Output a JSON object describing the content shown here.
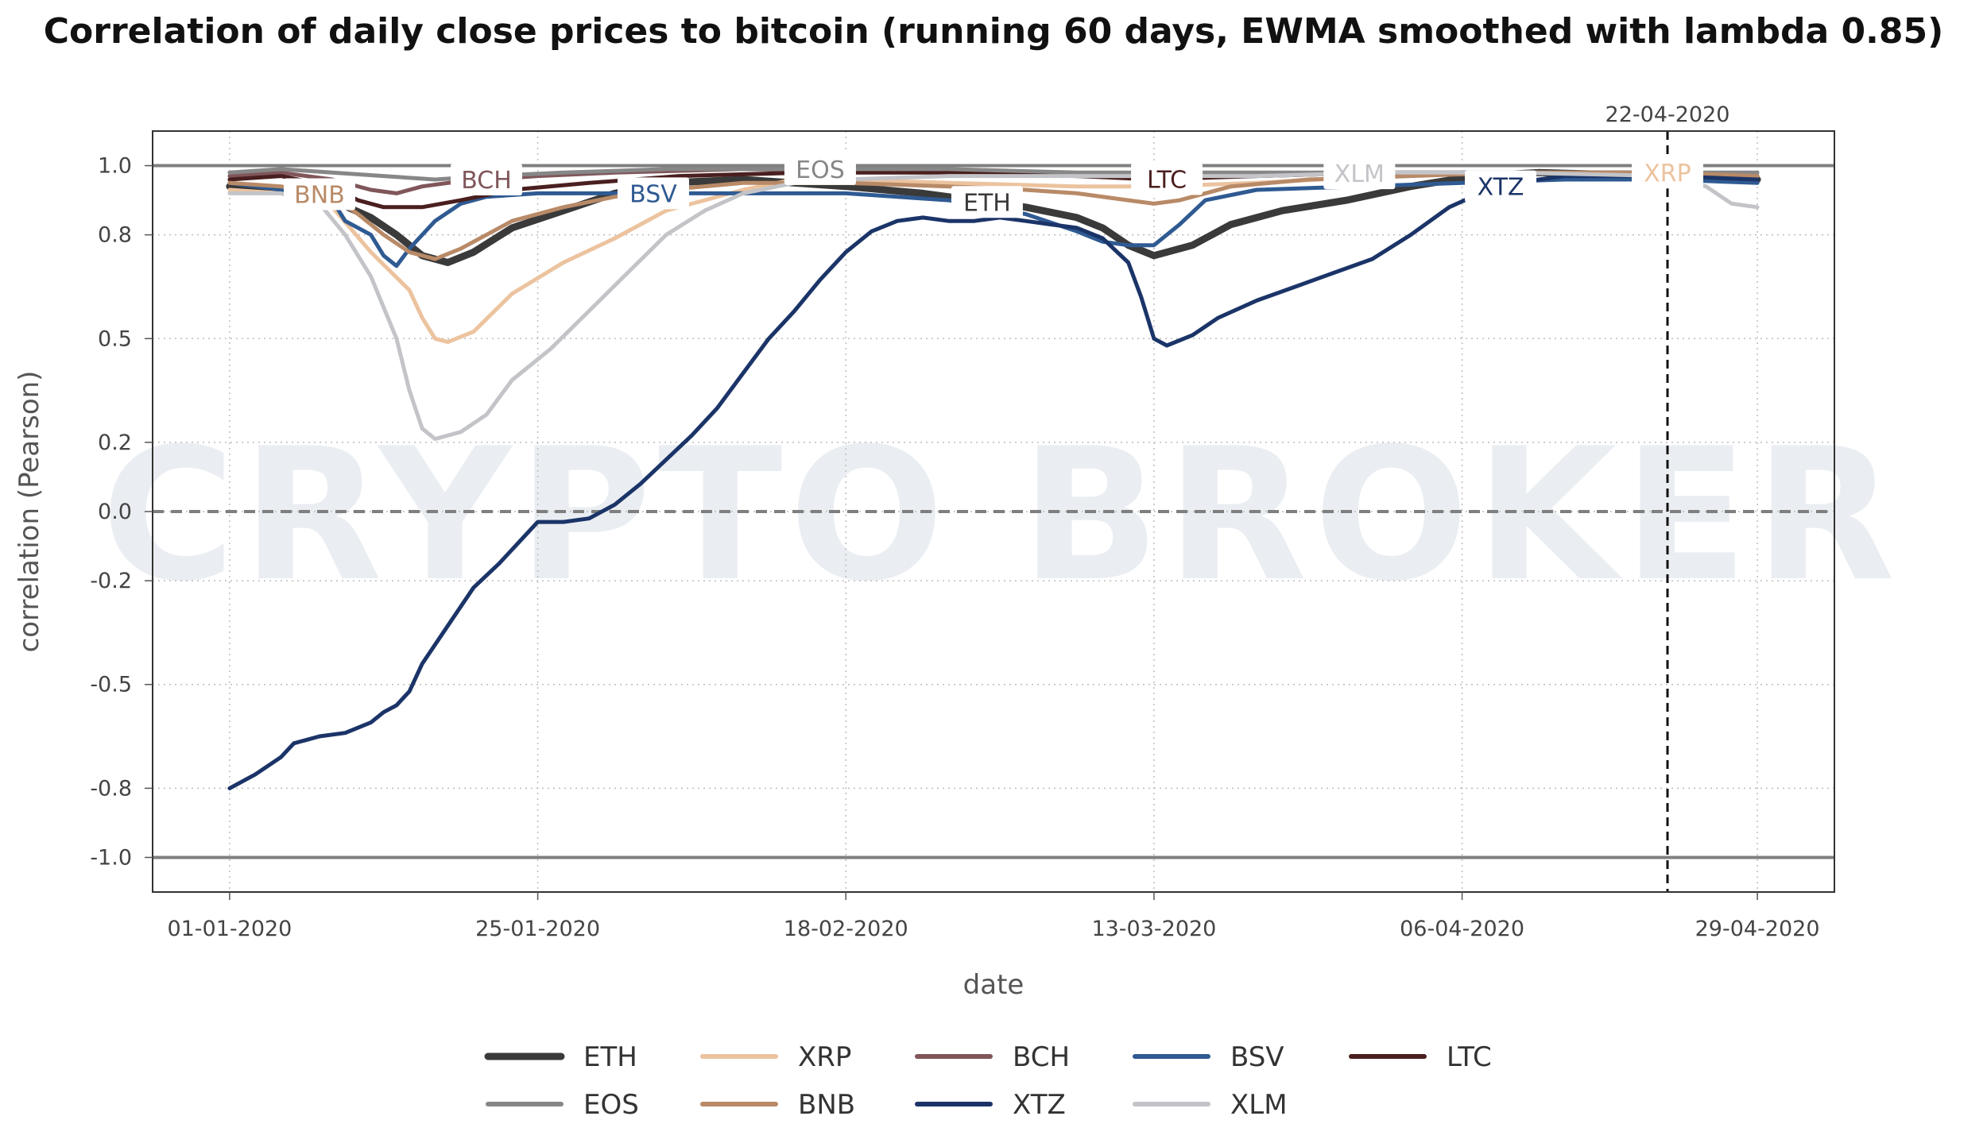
{
  "chart_data": {
    "type": "line",
    "title": "Correlation of daily close prices to bitcoin (running 60 days, EWMA smoothed with lambda 0.85)",
    "xlabel": "date",
    "ylabel": "correlation (Pearson)",
    "ylim": [
      -1.1,
      1.1
    ],
    "yticks": [
      1.0,
      0.8,
      0.5,
      0.2,
      0.0,
      -0.2,
      -0.5,
      -0.8,
      -1.0
    ],
    "ytick_labels": [
      "1.0",
      "0.8",
      "0.5",
      "0.2",
      "0.0",
      "-0.2",
      "-0.5",
      "-0.8",
      "-1.0"
    ],
    "xlim_days": [
      -6,
      125
    ],
    "xtick_days": [
      0,
      24,
      48,
      72,
      96,
      119
    ],
    "xtick_labels": [
      "01-01-2020",
      "25-01-2020",
      "18-02-2020",
      "13-03-2020",
      "06-04-2020",
      "29-04-2020"
    ],
    "marker": {
      "day": 112,
      "label": "22-04-2020"
    },
    "watermark": "CRYPTO BROKER",
    "grid": true,
    "legend_position": "bottom",
    "series": [
      {
        "name": "ETH",
        "color": "#3a3a3a",
        "width": 9,
        "label_day": 59,
        "points": [
          [
            0,
            0.94
          ],
          [
            4,
            0.93
          ],
          [
            8,
            0.9
          ],
          [
            11,
            0.85
          ],
          [
            13,
            0.8
          ],
          [
            15,
            0.74
          ],
          [
            17,
            0.72
          ],
          [
            19,
            0.75
          ],
          [
            22,
            0.82
          ],
          [
            26,
            0.87
          ],
          [
            30,
            0.92
          ],
          [
            34,
            0.95
          ],
          [
            40,
            0.96
          ],
          [
            48,
            0.94
          ],
          [
            54,
            0.92
          ],
          [
            58,
            0.9
          ],
          [
            62,
            0.88
          ],
          [
            66,
            0.85
          ],
          [
            68,
            0.82
          ],
          [
            70,
            0.77
          ],
          [
            72,
            0.74
          ],
          [
            75,
            0.77
          ],
          [
            78,
            0.83
          ],
          [
            82,
            0.87
          ],
          [
            87,
            0.9
          ],
          [
            92,
            0.94
          ],
          [
            97,
            0.97
          ],
          [
            102,
            0.98
          ],
          [
            112,
            0.97
          ],
          [
            119,
            0.96
          ]
        ]
      },
      {
        "name": "XRP",
        "color": "#ecc39f",
        "width": 5,
        "label_day": 112,
        "points": [
          [
            0,
            0.93
          ],
          [
            4,
            0.92
          ],
          [
            8,
            0.88
          ],
          [
            11,
            0.75
          ],
          [
            14,
            0.64
          ],
          [
            15,
            0.56
          ],
          [
            16,
            0.5
          ],
          [
            17,
            0.49
          ],
          [
            19,
            0.52
          ],
          [
            22,
            0.63
          ],
          [
            26,
            0.72
          ],
          [
            30,
            0.79
          ],
          [
            34,
            0.87
          ],
          [
            40,
            0.93
          ],
          [
            44,
            0.96
          ],
          [
            48,
            0.96
          ],
          [
            56,
            0.95
          ],
          [
            66,
            0.94
          ],
          [
            72,
            0.94
          ],
          [
            80,
            0.95
          ],
          [
            90,
            0.97
          ],
          [
            100,
            0.98
          ],
          [
            112,
            0.98
          ],
          [
            119,
            0.97
          ]
        ]
      },
      {
        "name": "BCH",
        "color": "#80565a",
        "width": 5,
        "label_day": 20,
        "points": [
          [
            0,
            0.97
          ],
          [
            4,
            0.98
          ],
          [
            8,
            0.96
          ],
          [
            11,
            0.93
          ],
          [
            13,
            0.92
          ],
          [
            15,
            0.94
          ],
          [
            17,
            0.95
          ],
          [
            20,
            0.96
          ],
          [
            24,
            0.97
          ],
          [
            30,
            0.98
          ],
          [
            40,
            0.99
          ],
          [
            56,
            0.98
          ],
          [
            66,
            0.97
          ],
          [
            72,
            0.97
          ],
          [
            80,
            0.97
          ],
          [
            90,
            0.98
          ],
          [
            100,
            0.98
          ],
          [
            112,
            0.98
          ],
          [
            119,
            0.97
          ]
        ]
      },
      {
        "name": "BSV",
        "color": "#2f5a92",
        "width": 5,
        "label_day": 33,
        "points": [
          [
            0,
            0.95
          ],
          [
            4,
            0.93
          ],
          [
            8,
            0.9
          ],
          [
            9,
            0.84
          ],
          [
            11,
            0.8
          ],
          [
            12,
            0.74
          ],
          [
            13,
            0.71
          ],
          [
            14,
            0.76
          ],
          [
            16,
            0.84
          ],
          [
            18,
            0.89
          ],
          [
            20,
            0.91
          ],
          [
            24,
            0.92
          ],
          [
            30,
            0.92
          ],
          [
            40,
            0.92
          ],
          [
            48,
            0.92
          ],
          [
            56,
            0.9
          ],
          [
            62,
            0.86
          ],
          [
            66,
            0.81
          ],
          [
            68,
            0.78
          ],
          [
            70,
            0.77
          ],
          [
            72,
            0.77
          ],
          [
            74,
            0.83
          ],
          [
            76,
            0.9
          ],
          [
            80,
            0.93
          ],
          [
            88,
            0.94
          ],
          [
            96,
            0.95
          ],
          [
            104,
            0.96
          ],
          [
            112,
            0.96
          ],
          [
            119,
            0.95
          ]
        ]
      },
      {
        "name": "LTC",
        "color": "#4a1f1f",
        "width": 5,
        "label_day": 73,
        "points": [
          [
            0,
            0.96
          ],
          [
            4,
            0.97
          ],
          [
            8,
            0.94
          ],
          [
            10,
            0.9
          ],
          [
            12,
            0.88
          ],
          [
            15,
            0.88
          ],
          [
            18,
            0.9
          ],
          [
            22,
            0.93
          ],
          [
            28,
            0.95
          ],
          [
            35,
            0.97
          ],
          [
            45,
            0.98
          ],
          [
            56,
            0.98
          ],
          [
            66,
            0.97
          ],
          [
            72,
            0.96
          ],
          [
            80,
            0.97
          ],
          [
            90,
            0.98
          ],
          [
            100,
            0.98
          ],
          [
            112,
            0.98
          ],
          [
            119,
            0.97
          ]
        ]
      },
      {
        "name": "EOS",
        "color": "#878787",
        "width": 5,
        "label_day": 46,
        "points": [
          [
            0,
            0.98
          ],
          [
            4,
            0.99
          ],
          [
            8,
            0.98
          ],
          [
            12,
            0.97
          ],
          [
            16,
            0.96
          ],
          [
            20,
            0.97
          ],
          [
            26,
            0.98
          ],
          [
            34,
            0.99
          ],
          [
            46,
            0.99
          ],
          [
            56,
            0.99
          ],
          [
            66,
            0.98
          ],
          [
            72,
            0.98
          ],
          [
            80,
            0.98
          ],
          [
            90,
            0.98
          ],
          [
            100,
            0.98
          ],
          [
            112,
            0.98
          ],
          [
            119,
            0.98
          ]
        ]
      },
      {
        "name": "BNB",
        "color": "#b88a67",
        "width": 5,
        "label_day": 7,
        "points": [
          [
            0,
            0.95
          ],
          [
            4,
            0.94
          ],
          [
            8,
            0.91
          ],
          [
            10,
            0.86
          ],
          [
            12,
            0.8
          ],
          [
            14,
            0.75
          ],
          [
            16,
            0.73
          ],
          [
            18,
            0.76
          ],
          [
            22,
            0.84
          ],
          [
            26,
            0.88
          ],
          [
            30,
            0.91
          ],
          [
            34,
            0.93
          ],
          [
            40,
            0.95
          ],
          [
            48,
            0.95
          ],
          [
            56,
            0.94
          ],
          [
            62,
            0.93
          ],
          [
            66,
            0.92
          ],
          [
            70,
            0.9
          ],
          [
            72,
            0.89
          ],
          [
            74,
            0.9
          ],
          [
            78,
            0.94
          ],
          [
            84,
            0.96
          ],
          [
            92,
            0.97
          ],
          [
            100,
            0.98
          ],
          [
            112,
            0.98
          ],
          [
            119,
            0.97
          ]
        ]
      },
      {
        "name": "XTZ",
        "color": "#1b3468",
        "width": 5,
        "label_day": 99,
        "points": [
          [
            0,
            -0.8
          ],
          [
            2,
            -0.76
          ],
          [
            4,
            -0.71
          ],
          [
            5,
            -0.67
          ],
          [
            7,
            -0.65
          ],
          [
            9,
            -0.64
          ],
          [
            11,
            -0.61
          ],
          [
            12,
            -0.58
          ],
          [
            13,
            -0.56
          ],
          [
            14,
            -0.52
          ],
          [
            15,
            -0.44
          ],
          [
            17,
            -0.33
          ],
          [
            19,
            -0.22
          ],
          [
            21,
            -0.15
          ],
          [
            23,
            -0.07
          ],
          [
            24,
            -0.03
          ],
          [
            26,
            -0.03
          ],
          [
            28,
            -0.02
          ],
          [
            30,
            0.02
          ],
          [
            32,
            0.08
          ],
          [
            34,
            0.15
          ],
          [
            36,
            0.22
          ],
          [
            38,
            0.3
          ],
          [
            40,
            0.4
          ],
          [
            42,
            0.5
          ],
          [
            44,
            0.58
          ],
          [
            46,
            0.67
          ],
          [
            48,
            0.75
          ],
          [
            50,
            0.81
          ],
          [
            52,
            0.84
          ],
          [
            54,
            0.85
          ],
          [
            56,
            0.84
          ],
          [
            58,
            0.84
          ],
          [
            60,
            0.85
          ],
          [
            62,
            0.84
          ],
          [
            64,
            0.83
          ],
          [
            66,
            0.82
          ],
          [
            68,
            0.79
          ],
          [
            70,
            0.72
          ],
          [
            71,
            0.62
          ],
          [
            72,
            0.5
          ],
          [
            73,
            0.48
          ],
          [
            75,
            0.51
          ],
          [
            77,
            0.56
          ],
          [
            80,
            0.61
          ],
          [
            83,
            0.65
          ],
          [
            86,
            0.69
          ],
          [
            89,
            0.73
          ],
          [
            92,
            0.8
          ],
          [
            95,
            0.88
          ],
          [
            98,
            0.93
          ],
          [
            100,
            0.95
          ],
          [
            104,
            0.97
          ],
          [
            112,
            0.97
          ],
          [
            119,
            0.96
          ]
        ]
      },
      {
        "name": "XLM",
        "color": "#c3c4c8",
        "width": 5,
        "label_day": 88,
        "points": [
          [
            0,
            0.92
          ],
          [
            4,
            0.92
          ],
          [
            7,
            0.89
          ],
          [
            9,
            0.8
          ],
          [
            11,
            0.68
          ],
          [
            13,
            0.5
          ],
          [
            14,
            0.35
          ],
          [
            15,
            0.24
          ],
          [
            16,
            0.21
          ],
          [
            18,
            0.23
          ],
          [
            20,
            0.28
          ],
          [
            22,
            0.38
          ],
          [
            25,
            0.47
          ],
          [
            28,
            0.58
          ],
          [
            31,
            0.69
          ],
          [
            34,
            0.8
          ],
          [
            37,
            0.87
          ],
          [
            40,
            0.92
          ],
          [
            44,
            0.95
          ],
          [
            48,
            0.96
          ],
          [
            56,
            0.97
          ],
          [
            66,
            0.97
          ],
          [
            72,
            0.97
          ],
          [
            80,
            0.97
          ],
          [
            90,
            0.98
          ],
          [
            100,
            0.98
          ],
          [
            112,
            0.97
          ],
          [
            115,
            0.94
          ],
          [
            117,
            0.89
          ],
          [
            119,
            0.88
          ]
        ]
      }
    ],
    "legend": [
      {
        "name": "ETH",
        "color": "#3a3a3a",
        "width": 9
      },
      {
        "name": "XRP",
        "color": "#ecc39f",
        "width": 6
      },
      {
        "name": "BCH",
        "color": "#80565a",
        "width": 6
      },
      {
        "name": "BSV",
        "color": "#2f5a92",
        "width": 6
      },
      {
        "name": "LTC",
        "color": "#4a1f1f",
        "width": 6
      },
      {
        "name": "EOS",
        "color": "#878787",
        "width": 6
      },
      {
        "name": "BNB",
        "color": "#b88a67",
        "width": 6
      },
      {
        "name": "XTZ",
        "color": "#1b3468",
        "width": 6
      },
      {
        "name": "XLM",
        "color": "#c3c4c8",
        "width": 6
      }
    ]
  }
}
